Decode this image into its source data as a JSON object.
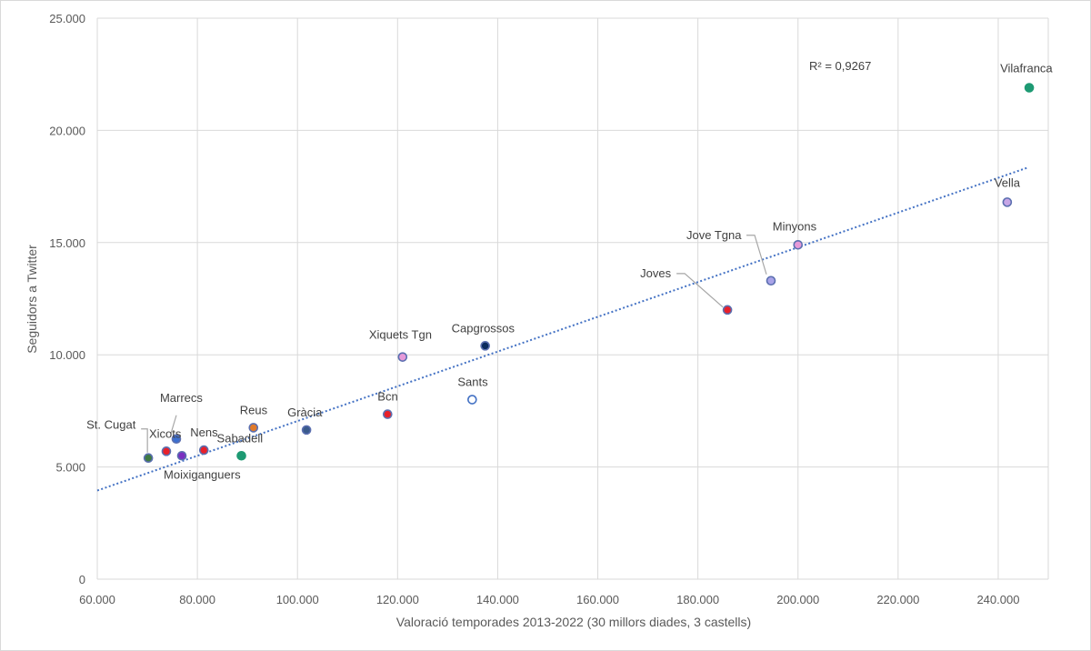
{
  "chart_data": {
    "type": "scatter",
    "title": "",
    "xlabel": "Valoració temporades 2013-2022 (30 millors diades, 3 castells)",
    "ylabel": "Seguidors a Twitter",
    "xlim": [
      60000,
      250000
    ],
    "ylim": [
      0,
      25000
    ],
    "x_ticks": [
      60000,
      80000,
      100000,
      120000,
      140000,
      160000,
      180000,
      200000,
      220000,
      240000
    ],
    "x_tick_labels": [
      "60.000",
      "80.000",
      "100.000",
      "120.000",
      "140.000",
      "160.000",
      "180.000",
      "200.000",
      "220.000",
      "240.000"
    ],
    "y_ticks": [
      0,
      5000,
      10000,
      15000,
      20000,
      25000
    ],
    "y_tick_labels": [
      "0",
      "5.000",
      "10.000",
      "15.000",
      "20.000",
      "25.000"
    ],
    "grid": true,
    "legend": "none",
    "points": [
      {
        "label": "St. Cugat",
        "x": 70200,
        "y": 5400,
        "fill": "#3f7a43",
        "stroke": "#5b6fb0"
      },
      {
        "label": "Xicots",
        "x": 73800,
        "y": 5700,
        "fill": "#e8202a",
        "stroke": "#5b6fb0"
      },
      {
        "label": "Marrecs",
        "x": 75800,
        "y": 6250,
        "fill": "#3b6fd1",
        "stroke": "#5b6fb0"
      },
      {
        "label": "Moixiganguers",
        "x": 76900,
        "y": 5500,
        "fill": "#7a2fc0",
        "stroke": "#5b6fb0"
      },
      {
        "label": "Nens",
        "x": 81300,
        "y": 5750,
        "fill": "#e8202a",
        "stroke": "#5b6fb0"
      },
      {
        "label": "Sabadell",
        "x": 88800,
        "y": 5500,
        "fill": "#1e9a73",
        "stroke": "#1e9a73"
      },
      {
        "label": "Reus",
        "x": 91200,
        "y": 6750,
        "fill": "#e07a2a",
        "stroke": "#5b6fb0"
      },
      {
        "label": "Gràcia",
        "x": 101800,
        "y": 6650,
        "fill": "#3a5a8c",
        "stroke": "#5b6fb0"
      },
      {
        "label": "Bcn",
        "x": 118000,
        "y": 7350,
        "fill": "#e8202a",
        "stroke": "#5b6fb0"
      },
      {
        "label": "Xiquets Tgn",
        "x": 121000,
        "y": 9900,
        "fill": "#e69ad9",
        "stroke": "#5b6fb0"
      },
      {
        "label": "Sants",
        "x": 134900,
        "y": 8000,
        "fill": "#ffffff",
        "stroke": "#4472c4"
      },
      {
        "label": "Capgrossos",
        "x": 137500,
        "y": 10400,
        "fill": "#0c2c5e",
        "stroke": "#5b6fb0"
      },
      {
        "label": "Joves",
        "x": 185900,
        "y": 12000,
        "fill": "#e8202a",
        "stroke": "#5b6fb0"
      },
      {
        "label": "Jove Tgna",
        "x": 194600,
        "y": 13300,
        "fill": "#a9a3e8",
        "stroke": "#5b6fb0"
      },
      {
        "label": "Minyons",
        "x": 200000,
        "y": 14900,
        "fill": "#e69ad9",
        "stroke": "#5b6fb0"
      },
      {
        "label": "Vella",
        "x": 241800,
        "y": 16800,
        "fill": "#c7a6e6",
        "stroke": "#5b6fb0"
      },
      {
        "label": "Vilafranca",
        "x": 246200,
        "y": 21900,
        "fill": "#1e9a73",
        "stroke": "#1e9a73"
      }
    ],
    "trendline": {
      "type": "linear",
      "color": "#4472c4",
      "style": "dotted",
      "x_start": 60000,
      "y_start": 3950,
      "x_end": 246000,
      "y_end": 18350
    },
    "r_squared_label": "R² = 0,9267"
  }
}
